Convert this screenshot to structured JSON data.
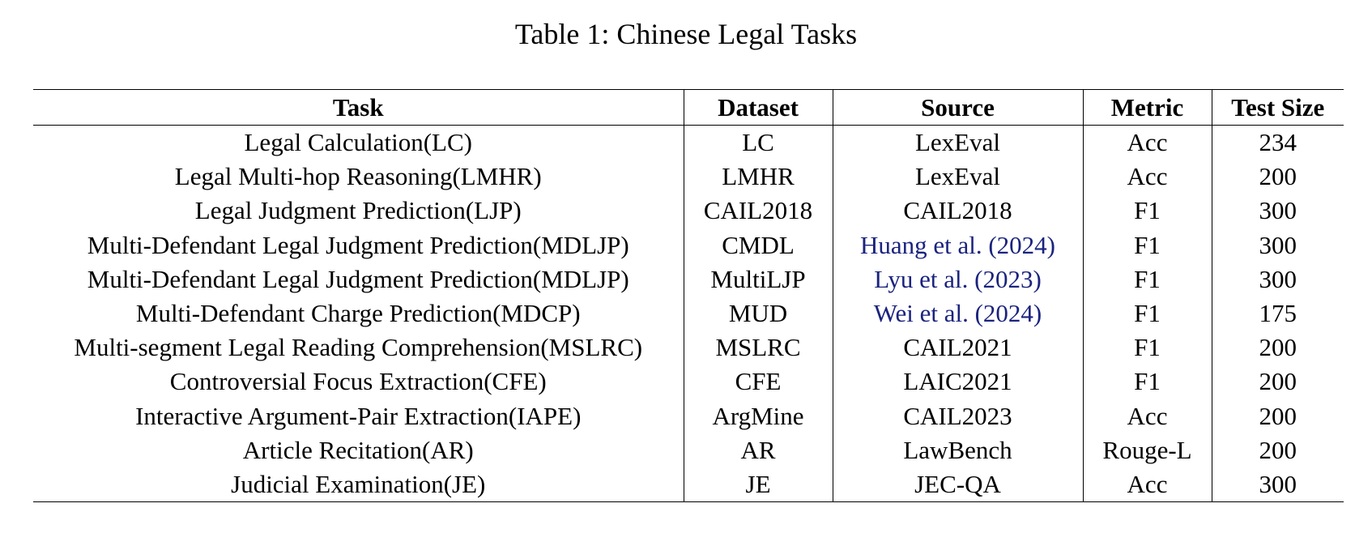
{
  "caption": "Table 1: Chinese Legal Tasks",
  "link_color": "#1a237e",
  "headers": [
    "Task",
    "Dataset",
    "Source",
    "Metric",
    "Test Size"
  ],
  "rows": [
    {
      "task": "Legal Calculation(LC)",
      "dataset": "LC",
      "source": "LexEval",
      "metric": "Acc",
      "test_size": "234"
    },
    {
      "task": "Legal Multi-hop Reasoning(LMHR)",
      "dataset": "LMHR",
      "source": "LexEval",
      "metric": "Acc",
      "test_size": "200"
    },
    {
      "task": "Legal Judgment Prediction(LJP)",
      "dataset": "CAIL2018",
      "source": "CAIL2018",
      "metric": "F1",
      "test_size": "300"
    },
    {
      "task": "Multi-Defendant Legal Judgment Prediction(MDLJP)",
      "dataset": "CMDL",
      "source": "Huang et al. (2024)",
      "source_is_citation": true,
      "metric": "F1",
      "test_size": "300"
    },
    {
      "task": "Multi-Defendant Legal Judgment Prediction(MDLJP)",
      "dataset": "MultiLJP",
      "source": "Lyu et al. (2023)",
      "source_is_citation": true,
      "metric": "F1",
      "test_size": "300"
    },
    {
      "task": "Multi-Defendant Charge Prediction(MDCP)",
      "dataset": "MUD",
      "source": "Wei et al. (2024)",
      "source_is_citation": true,
      "metric": "F1",
      "test_size": "175"
    },
    {
      "task": "Multi-segment Legal Reading Comprehension(MSLRC)",
      "dataset": "MSLRC",
      "source": "CAIL2021",
      "metric": "F1",
      "test_size": "200"
    },
    {
      "task": "Controversial Focus Extraction(CFE)",
      "dataset": "CFE",
      "source": "LAIC2021",
      "metric": "F1",
      "test_size": "200"
    },
    {
      "task": "Interactive Argument-Pair Extraction(IAPE)",
      "dataset": "ArgMine",
      "source": "CAIL2023",
      "metric": "Acc",
      "test_size": "200"
    },
    {
      "task": "Article Recitation(AR)",
      "dataset": "AR",
      "source": "LawBench",
      "metric": "Rouge-L",
      "test_size": "200"
    },
    {
      "task": "Judicial Examination(JE)",
      "dataset": "JE",
      "source": "JEC-QA",
      "metric": "Acc",
      "test_size": "300"
    }
  ]
}
